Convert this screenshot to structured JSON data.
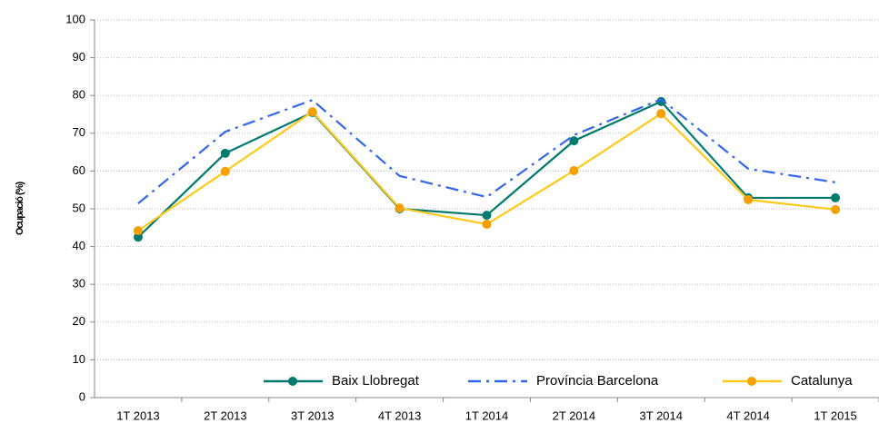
{
  "chart_data": {
    "type": "line",
    "y_label": "Ocupació (%)",
    "categories": [
      "1T 2013",
      "2T 2013",
      "3T 2013",
      "4T 2013",
      "1T 2014",
      "2T 2014",
      "3T 2014",
      "4T 2014",
      "1T 2015"
    ],
    "series": [
      {
        "name": "Baix Llobregat",
        "color": "#007a6e",
        "marker_color": "#007a6e",
        "dash": "solid",
        "values": [
          42.5,
          64.7,
          75.5,
          50.0,
          48.3,
          68.0,
          78.4,
          52.9,
          52.9
        ]
      },
      {
        "name": "Província Barcelona",
        "color": "#3366ee",
        "dash": "dashdot",
        "values": [
          51.4,
          70.4,
          78.8,
          58.7,
          53.1,
          69.5,
          79.0,
          60.6,
          57.0
        ]
      },
      {
        "name": "Catalunya",
        "color": "#ffc91a",
        "marker_color": "#f5a000",
        "dash": "solid",
        "values": [
          44.2,
          59.9,
          75.7,
          50.2,
          45.9,
          60.1,
          75.2,
          52.4,
          49.8
        ]
      }
    ],
    "ylim": [
      0,
      100
    ],
    "yticks": [
      0,
      10,
      20,
      30,
      40,
      50,
      60,
      70,
      80,
      90,
      100
    ],
    "grid": true,
    "legend": "bottom-right"
  }
}
